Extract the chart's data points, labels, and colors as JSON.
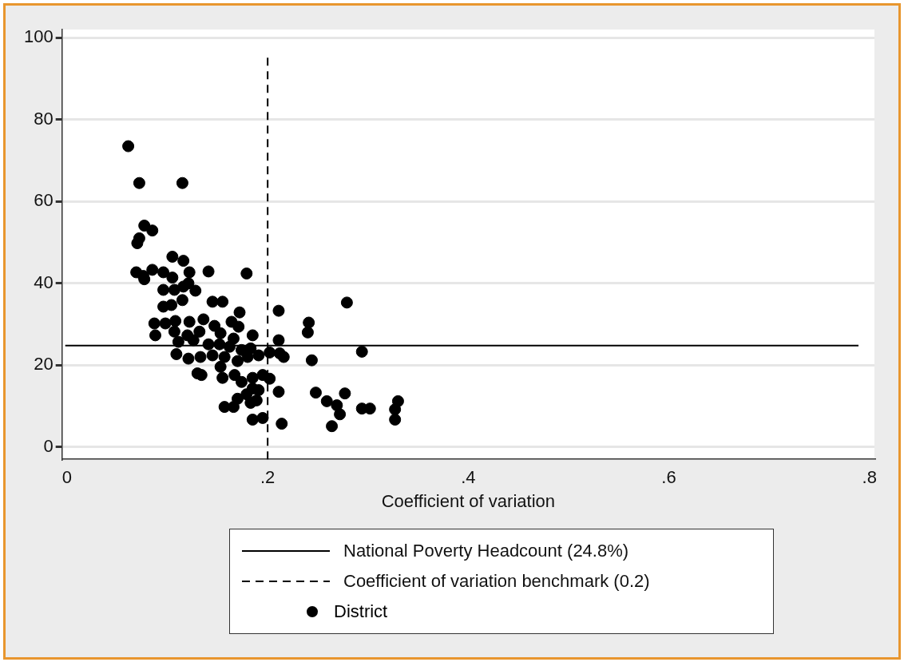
{
  "chart_data": {
    "type": "scatter",
    "xlabel": "Coefficient of variation",
    "xlim": [
      -0.005,
      0.805
    ],
    "xticks": [
      {
        "value": 0,
        "label": "0"
      },
      {
        "value": 0.2,
        "label": ".2"
      },
      {
        "value": 0.4,
        "label": ".4"
      },
      {
        "value": 0.6,
        "label": ".6"
      },
      {
        "value": 0.8,
        "label": ".8"
      }
    ],
    "ylim": [
      -3,
      102
    ],
    "yticks": [
      0,
      20,
      40,
      60,
      80,
      100
    ],
    "grid": "y",
    "legend": "bottom",
    "marker": "circle",
    "ref_lines": [
      {
        "axis": "y",
        "value": 24.8,
        "label": "National Poverty Headcount (24.8%)",
        "color": "#000000",
        "line_style": "solid"
      },
      {
        "axis": "x",
        "value": 0.2,
        "label": "Coefficient of variation benchmark (0.2)",
        "color": "#000000",
        "line_style": "dashed"
      }
    ],
    "series": [
      {
        "name": "District",
        "color": "#000000",
        "x": [
          0.061,
          0.072,
          0.115,
          0.077,
          0.085,
          0.072,
          0.07,
          0.069,
          0.076,
          0.077,
          0.085,
          0.096,
          0.105,
          0.116,
          0.122,
          0.141,
          0.179,
          0.096,
          0.107,
          0.116,
          0.128,
          0.121,
          0.105,
          0.096,
          0.104,
          0.115,
          0.145,
          0.155,
          0.172,
          0.087,
          0.098,
          0.108,
          0.122,
          0.136,
          0.147,
          0.164,
          0.171,
          0.088,
          0.107,
          0.12,
          0.132,
          0.153,
          0.166,
          0.185,
          0.111,
          0.126,
          0.141,
          0.152,
          0.162,
          0.174,
          0.183,
          0.109,
          0.121,
          0.133,
          0.145,
          0.157,
          0.17,
          0.18,
          0.191,
          0.202,
          0.212,
          0.216,
          0.13,
          0.134,
          0.153,
          0.155,
          0.167,
          0.174,
          0.185,
          0.195,
          0.202,
          0.157,
          0.166,
          0.17,
          0.179,
          0.185,
          0.189,
          0.191,
          0.183,
          0.185,
          0.195,
          0.214,
          0.211,
          0.211,
          0.211,
          0.279,
          0.241,
          0.24,
          0.294,
          0.244,
          0.248,
          0.259,
          0.269,
          0.272,
          0.277,
          0.264,
          0.294,
          0.302,
          0.33,
          0.327,
          0.327
        ],
        "values": [
          73.5,
          64.5,
          64.5,
          54.1,
          52.9,
          51,
          49.8,
          42.7,
          41.8,
          41,
          43.3,
          42.7,
          46.5,
          45.5,
          42.7,
          42.9,
          42.4,
          38.4,
          38.4,
          39.2,
          38.2,
          40,
          41.4,
          34.3,
          34.7,
          35.9,
          35.5,
          35.5,
          32.9,
          30.2,
          30.2,
          30.8,
          30.6,
          31.2,
          29.6,
          30.6,
          29.4,
          27.3,
          28.2,
          27.3,
          28.2,
          27.8,
          26.5,
          27.3,
          25.7,
          26.1,
          25.1,
          25.1,
          24.5,
          23.7,
          24.1,
          22.7,
          21.6,
          22,
          22.4,
          22,
          21,
          22,
          22.4,
          23.1,
          22.9,
          22,
          18,
          17.6,
          19.6,
          16.9,
          17.6,
          15.9,
          16.9,
          17.6,
          16.7,
          9.8,
          9.8,
          11.8,
          12.9,
          14.3,
          11.4,
          13.9,
          10.8,
          6.7,
          7.1,
          5.7,
          33.3,
          26.1,
          13.5,
          35.3,
          30.4,
          28,
          23.3,
          21.2,
          13.3,
          11.2,
          10.2,
          8,
          13.1,
          5.1,
          9.4,
          9.4,
          11.2,
          9.2,
          6.7
        ]
      }
    ]
  }
}
